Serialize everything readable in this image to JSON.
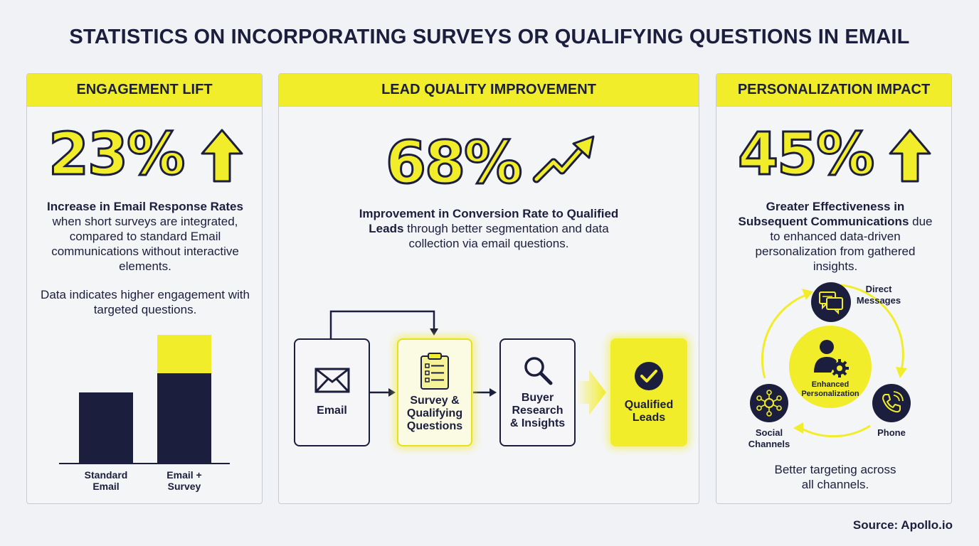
{
  "title": "STATISTICS ON INCORPORATING SURVEYS OR QUALIFYING QUESTIONS IN EMAIL",
  "panels": {
    "engagement": {
      "heading": "ENGAGEMENT LIFT",
      "stat": "23%",
      "desc_bold": "Increase in Email Response Rates",
      "desc_rest": " when short surveys are integrated, compared to standard Email communications without interactive elements.",
      "note": "Data indicates higher engagement with targeted questions.",
      "chart": {
        "bars": [
          {
            "label_1": "Standard",
            "label_2": "Email",
            "value": 0.55
          },
          {
            "label_1": "Email +",
            "label_2": "Survey",
            "value": 1.0,
            "highlight_fraction": 0.3
          }
        ]
      }
    },
    "lead": {
      "heading": "LEAD QUALITY IMPROVEMENT",
      "stat": "68%",
      "desc_bold": "Improvement in Conversion Rate to Qualified Leads",
      "desc_rest": " through better segmentation and data collection via email questions.",
      "flow": {
        "email": "Email",
        "survey_1": "Survey &",
        "survey_2": "Qualifying",
        "survey_3": "Questions",
        "buyer_1": "Buyer",
        "buyer_2": "Research",
        "buyer_3": "& Insights",
        "leads_1": "Qualified",
        "leads_2": "Leads"
      }
    },
    "personalization": {
      "heading": "PERSONALIZATION IMPACT",
      "stat": "45%",
      "desc_bold": "Greater Effectiveness in Subsequent Communications",
      "desc_rest": " due to enhanced data-driven personalization from gathered insights.",
      "center_1": "Enhanced",
      "center_2": "Personalization",
      "direct_1": "Direct",
      "direct_2": "Messages",
      "phone": "Phone",
      "social_1": "Social",
      "social_2": "Channels",
      "footer_1": "Better targeting across",
      "footer_2": "all channels."
    }
  },
  "source": "Source: Apollo.io",
  "colors": {
    "accent": "#f2ed2b",
    "navy": "#1b1e3c",
    "background": "#f1f2f5"
  }
}
